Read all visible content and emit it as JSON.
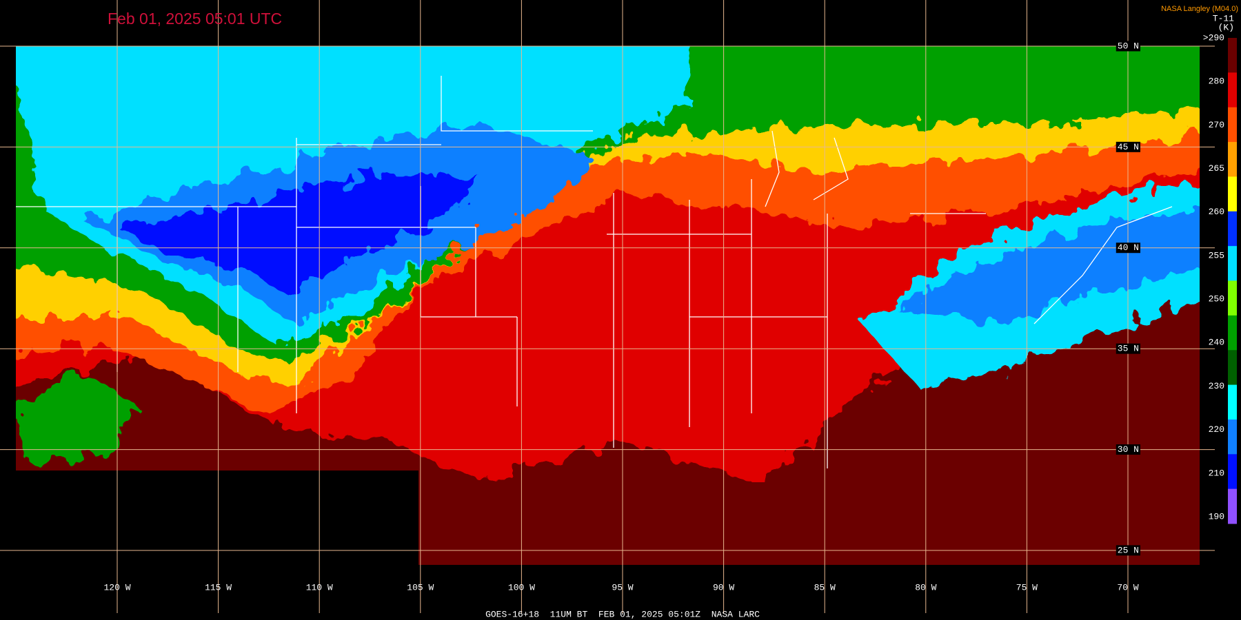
{
  "header": {
    "title": "Feb 01, 2025 05:01 UTC",
    "credit": "NASA Langley (M04.0)",
    "product": "T-11",
    "unit": "(K)"
  },
  "colorbar": {
    "labels": [
      ">290",
      "280",
      "270",
      "265",
      "260",
      "255",
      "250",
      "240",
      "230",
      "220",
      "210",
      "190"
    ],
    "colors": [
      "#6b0000",
      "#e00000",
      "#ff5000",
      "#ffa000",
      "#ffff00",
      "#0030ff",
      "#00e0ff",
      "#80ff00",
      "#00a000",
      "#006000",
      "#00ffff",
      "#1080ff",
      "#0010ff",
      "#9050ff"
    ]
  },
  "latitude_labels": [
    "50 N",
    "45 N",
    "40 N",
    "35 N",
    "30 N",
    "25 N"
  ],
  "longitude_labels": [
    "120 W",
    "115 W",
    "110 W",
    "105 W",
    "100 W",
    "95 W",
    "90 W",
    "85 W",
    "80 W",
    "75 W",
    "70 W"
  ],
  "footer": "GOES-16+18  11UM BT  FEB 01, 2025 05:01Z  NASA LARC"
}
